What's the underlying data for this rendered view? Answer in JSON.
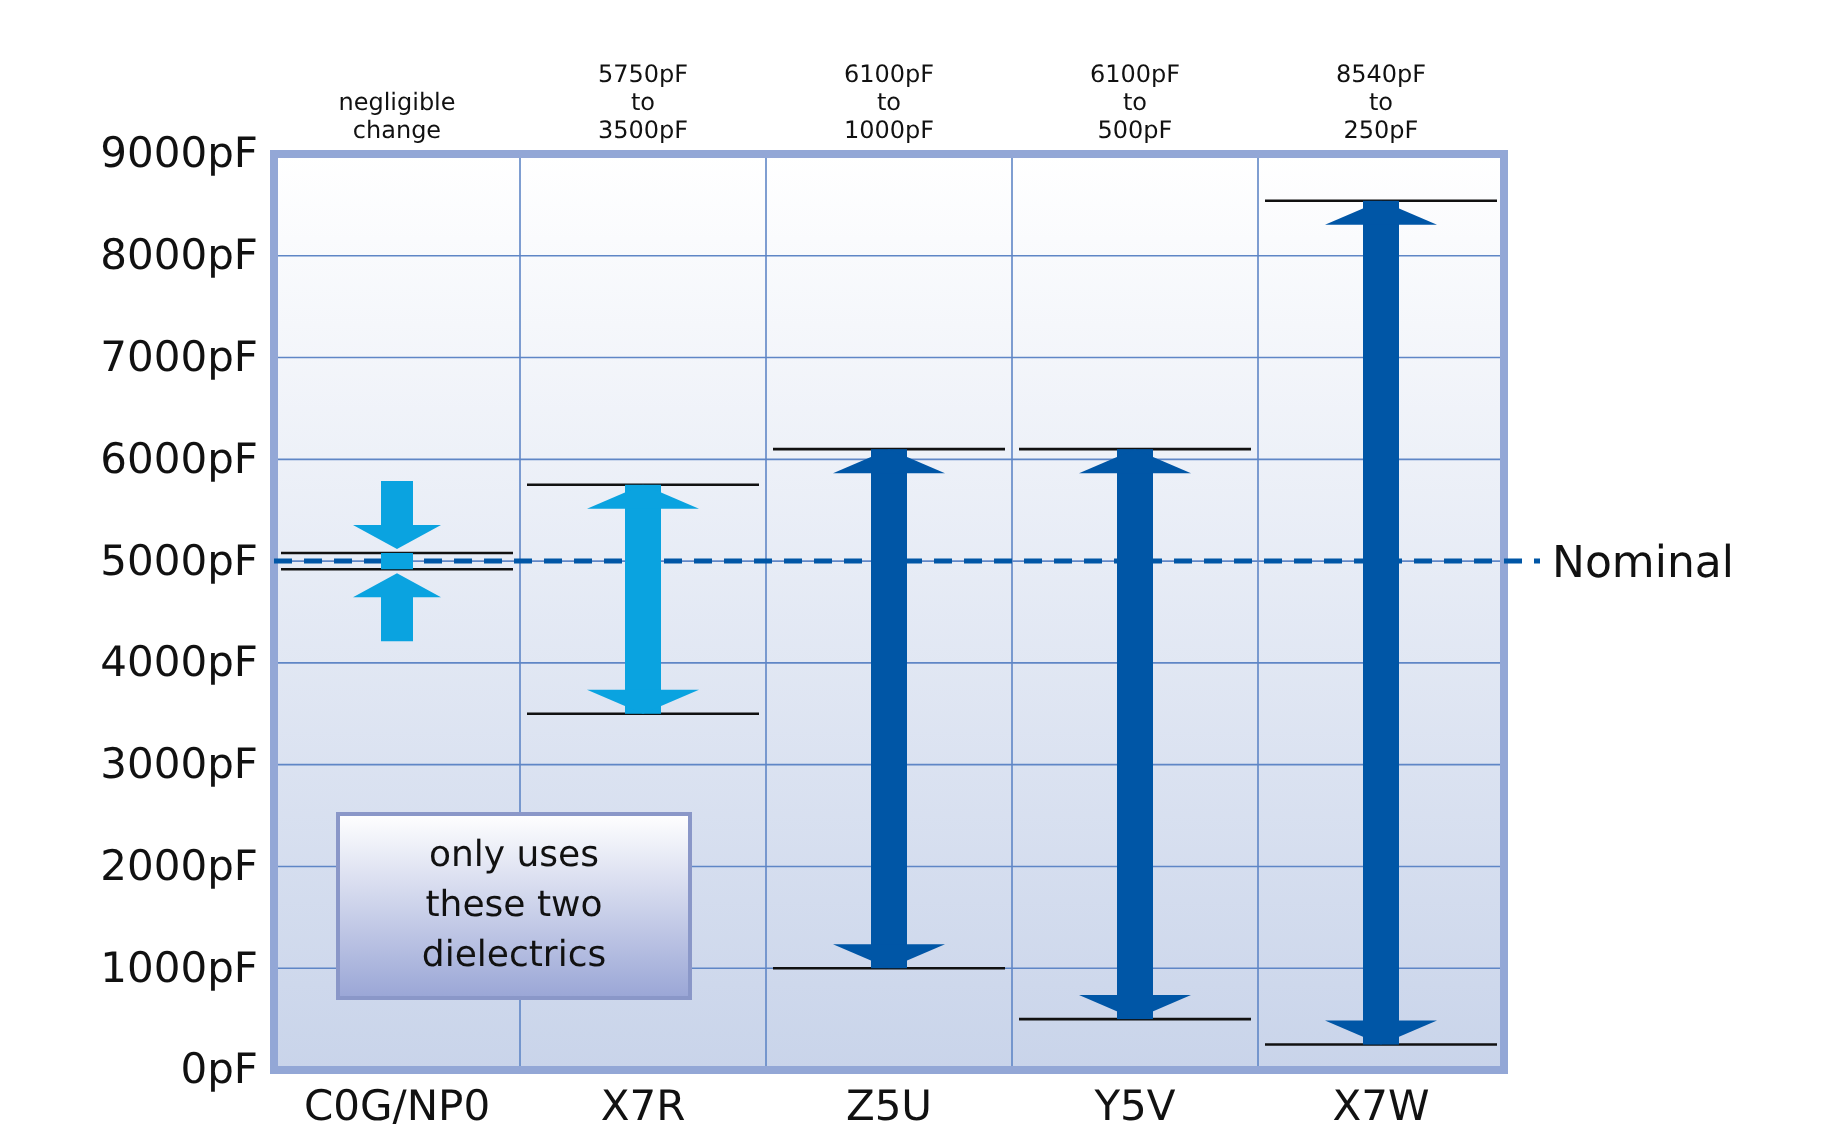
{
  "chart_data": {
    "type": "bar",
    "categories": [
      "C0G/NP0",
      "X7R",
      "Z5U",
      "Y5V",
      "X7W"
    ],
    "base": [
      4920,
      3500,
      1000,
      500,
      250
    ],
    "values": [
      160,
      2250,
      5100,
      5600,
      8290
    ],
    "colors": [
      "#0aa3e0",
      "#0aa3e0",
      "#0056a6",
      "#0056a6",
      "#0056a6"
    ],
    "ylim": [
      0,
      9000
    ],
    "yticks": [
      {
        "value": 0,
        "label": "0pF"
      },
      {
        "value": 1000,
        "label": "1000pF"
      },
      {
        "value": 2000,
        "label": "2000pF"
      },
      {
        "value": 3000,
        "label": "3000pF"
      },
      {
        "value": 4000,
        "label": "4000pF"
      },
      {
        "value": 5000,
        "label": "5000pF"
      },
      {
        "value": 6000,
        "label": "6000pF"
      },
      {
        "value": 7000,
        "label": "7000pF"
      },
      {
        "value": 8000,
        "label": "8000pF"
      },
      {
        "value": 9000,
        "label": "9000pF"
      }
    ],
    "grid": true,
    "ref_lines": [
      {
        "axis": "y",
        "value": 5000,
        "label": "Nominal",
        "color": "#0056a6",
        "line_style": "dashed"
      }
    ],
    "annotations": [
      "negligible\nchange",
      "5750pF\nto\n3500pF",
      "6100pF\nto\n1000pF",
      "6100pF\nto\n500pF",
      "8540pF\nto\n250pF",
      "only uses\nthese two\ndielectrics"
    ]
  }
}
